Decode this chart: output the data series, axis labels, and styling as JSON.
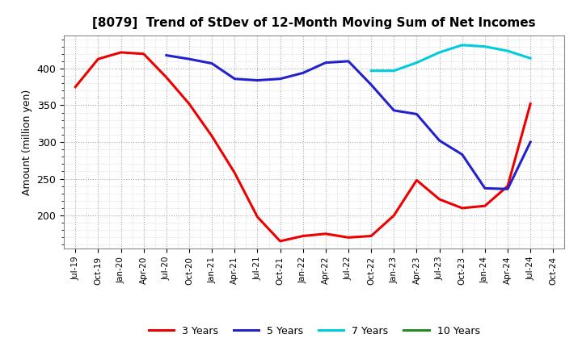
{
  "title": "[8079]  Trend of StDev of 12-Month Moving Sum of Net Incomes",
  "ylabel": "Amount (million yen)",
  "x_labels": [
    "Jul-19",
    "Oct-19",
    "Jan-20",
    "Apr-20",
    "Jul-20",
    "Oct-20",
    "Jan-21",
    "Apr-21",
    "Jul-21",
    "Oct-21",
    "Jan-22",
    "Apr-22",
    "Jul-22",
    "Oct-22",
    "Jan-23",
    "Apr-23",
    "Jul-23",
    "Oct-23",
    "Jan-24",
    "Apr-24",
    "Jul-24",
    "Oct-24"
  ],
  "series": {
    "3 Years": {
      "color": "#EE0000",
      "data": [
        375,
        413,
        422,
        420,
        388,
        352,
        308,
        258,
        198,
        165,
        172,
        175,
        170,
        172,
        200,
        248,
        222,
        210,
        213,
        240,
        352,
        null
      ]
    },
    "5 Years": {
      "color": "#2222CC",
      "data": [
        null,
        null,
        null,
        null,
        418,
        413,
        407,
        386,
        384,
        386,
        394,
        408,
        410,
        378,
        343,
        338,
        302,
        283,
        237,
        236,
        300,
        null
      ]
    },
    "7 Years": {
      "color": "#00CCDD",
      "data": [
        null,
        null,
        null,
        null,
        null,
        null,
        null,
        null,
        null,
        null,
        null,
        null,
        null,
        397,
        397,
        408,
        422,
        432,
        430,
        424,
        414,
        null
      ]
    },
    "10 Years": {
      "color": "#228B22",
      "data": [
        null,
        null,
        null,
        null,
        null,
        null,
        null,
        null,
        null,
        null,
        null,
        null,
        null,
        null,
        null,
        null,
        null,
        null,
        null,
        null,
        null,
        null
      ]
    }
  },
  "ylim": [
    155,
    445
  ],
  "yticks": [
    200,
    250,
    300,
    350,
    400
  ],
  "background_color": "#FFFFFF",
  "plot_bg_color": "#FFFFFF",
  "grid_color": "#AAAAAA",
  "title_fontsize": 11,
  "linewidth": 2.2
}
